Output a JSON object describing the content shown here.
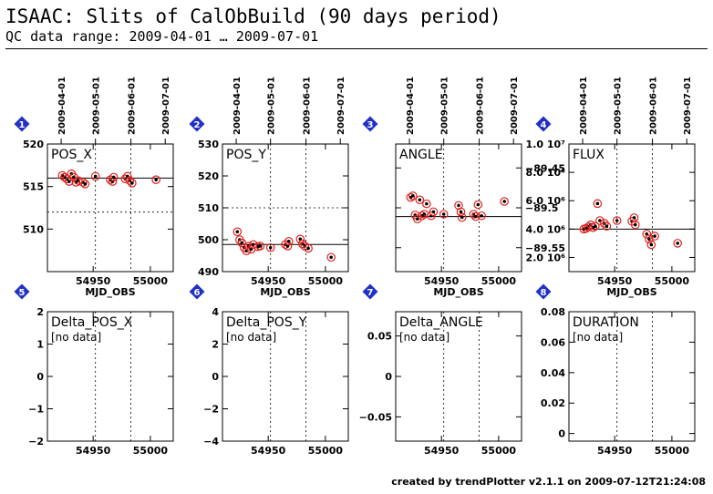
{
  "header": {
    "title": "ISAAC: Slits of CalObBuild (90 days period)",
    "subtitle": "QC data range: 2009-04-01 … 2009-07-01"
  },
  "footer": "created by trendPlotter v2.1.1 on 2009-07-12T21:24:08",
  "colors": {
    "data_ring": "#e0201b",
    "marker": "#2030c8",
    "axes": "#000000"
  },
  "date_axis": {
    "labels": [
      "2009-04-01",
      "2009-05-01",
      "2009-06-01",
      "2009-07-01"
    ],
    "mjd": [
      54922,
      54952,
      54983,
      55013
    ]
  },
  "chart_data": [
    {
      "type": "scatter",
      "marker": "1",
      "title": "POS_X",
      "xlabel": "MJD_OBS",
      "xlim": [
        54910,
        55020
      ],
      "ylim": [
        505,
        520
      ],
      "yticks": [
        {
          "v": 510,
          "t": "510"
        },
        {
          "v": 515,
          "t": "515"
        },
        {
          "v": 520,
          "t": "520"
        }
      ],
      "xticks": [
        {
          "v": 54950,
          "t": "54950"
        },
        {
          "v": 55000,
          "t": "55000"
        }
      ],
      "reference_line": 516,
      "dashed_lines": [
        512
      ],
      "points": [
        [
          54923,
          516.3
        ],
        [
          54925,
          516.1
        ],
        [
          54927,
          515.9
        ],
        [
          54929,
          515.6
        ],
        [
          54931,
          516.5
        ],
        [
          54933,
          516.1
        ],
        [
          54935,
          515.5
        ],
        [
          54937,
          515.7
        ],
        [
          54941,
          515.5
        ],
        [
          54943,
          515.3
        ],
        [
          54952,
          516.2
        ],
        [
          54965,
          515.8
        ],
        [
          54967,
          515.6
        ],
        [
          54968,
          516.1
        ],
        [
          54978,
          515.9
        ],
        [
          54980,
          516.2
        ],
        [
          54982,
          515.7
        ],
        [
          54984,
          515.4
        ],
        [
          55005,
          515.8
        ]
      ],
      "no_data": false
    },
    {
      "type": "scatter",
      "marker": "2",
      "title": "POS_Y",
      "xlabel": "MJD_OBS",
      "xlim": [
        54910,
        55020
      ],
      "ylim": [
        490,
        530
      ],
      "yticks": [
        {
          "v": 490,
          "t": "490"
        },
        {
          "v": 500,
          "t": "500"
        },
        {
          "v": 510,
          "t": "510"
        },
        {
          "v": 520,
          "t": "520"
        },
        {
          "v": 530,
          "t": "530"
        }
      ],
      "xticks": [
        {
          "v": 54950,
          "t": "54950"
        },
        {
          "v": 55000,
          "t": "55000"
        }
      ],
      "reference_line": 498.5,
      "dashed_lines": [
        510
      ],
      "points": [
        [
          54923,
          502.5
        ],
        [
          54925,
          500
        ],
        [
          54927,
          499
        ],
        [
          54929,
          497.5
        ],
        [
          54931,
          496.5
        ],
        [
          54933,
          498
        ],
        [
          54935,
          497
        ],
        [
          54937,
          498.5
        ],
        [
          54941,
          497.8
        ],
        [
          54943,
          498
        ],
        [
          54952,
          497.5
        ],
        [
          54965,
          498.5
        ],
        [
          54967,
          498
        ],
        [
          54968,
          499.5
        ],
        [
          54978,
          500.2
        ],
        [
          54980,
          498.7
        ],
        [
          54982,
          498
        ],
        [
          54985,
          497.3
        ],
        [
          55005,
          494.5
        ]
      ],
      "no_data": false
    },
    {
      "type": "scatter",
      "marker": "3",
      "title": "ANGLE",
      "xlabel": "MJD_OBS",
      "xlim": [
        54910,
        55020
      ],
      "ylim": [
        -89.58,
        -89.42
      ],
      "yticks": [
        {
          "v": -89.45,
          "t": "−89.45"
        },
        {
          "v": -89.5,
          "t": "−89.5"
        },
        {
          "v": -89.55,
          "t": "−89.55"
        }
      ],
      "xticks": [
        {
          "v": 54950,
          "t": "54950"
        },
        {
          "v": 55000,
          "t": "55000"
        }
      ],
      "reference_line": -89.511,
      "dashed_lines": [],
      "points": [
        [
          54923,
          -89.487
        ],
        [
          54925,
          -89.485
        ],
        [
          54927,
          -89.509
        ],
        [
          54929,
          -89.514
        ],
        [
          54931,
          -89.49
        ],
        [
          54933,
          -89.51
        ],
        [
          54935,
          -89.508
        ],
        [
          54937,
          -89.495
        ],
        [
          54941,
          -89.51
        ],
        [
          54943,
          -89.505
        ],
        [
          54952,
          -89.508
        ],
        [
          54965,
          -89.497
        ],
        [
          54967,
          -89.505
        ],
        [
          54968,
          -89.512
        ],
        [
          54978,
          -89.508
        ],
        [
          54980,
          -89.511
        ],
        [
          54982,
          -89.496
        ],
        [
          54985,
          -89.51
        ],
        [
          55005,
          -89.492
        ]
      ],
      "no_data": false
    },
    {
      "type": "scatter",
      "marker": "4",
      "title": "FLUX",
      "xlabel": "MJD_OBS",
      "xlim": [
        54910,
        55020
      ],
      "ylim": [
        1000000,
        10000000
      ],
      "yticks": [
        {
          "v": 2000000,
          "t": "2.0 10⁶"
        },
        {
          "v": 4000000,
          "t": "4.0 10⁶"
        },
        {
          "v": 6000000,
          "t": "6.0 10⁶"
        },
        {
          "v": 8000000,
          "t": "8.0 10⁶"
        },
        {
          "v": 10000000,
          "t": "1.0 10⁷"
        }
      ],
      "xticks": [
        {
          "v": 54950,
          "t": "54950"
        },
        {
          "v": 55000,
          "t": "55000"
        }
      ],
      "reference_line": 4000000,
      "dashed_lines": [],
      "points": [
        [
          54923,
          4000000
        ],
        [
          54925,
          4050000
        ],
        [
          54927,
          4150000
        ],
        [
          54929,
          4300000
        ],
        [
          54931,
          4100000
        ],
        [
          54933,
          4200000
        ],
        [
          54935,
          5800000
        ],
        [
          54937,
          4600000
        ],
        [
          54941,
          4400000
        ],
        [
          54943,
          4200000
        ],
        [
          54952,
          4600000
        ],
        [
          54965,
          4550000
        ],
        [
          54967,
          4800000
        ],
        [
          54968,
          4300000
        ],
        [
          54978,
          3650000
        ],
        [
          54980,
          3300000
        ],
        [
          54982,
          2900000
        ],
        [
          54985,
          3500000
        ],
        [
          55005,
          3000000
        ]
      ],
      "no_data": false
    },
    {
      "type": "scatter",
      "marker": "5",
      "title": "Delta_POS_X",
      "xlabel": "",
      "xlim": [
        54910,
        55020
      ],
      "ylim": [
        -2,
        2
      ],
      "yticks": [
        {
          "v": -2,
          "t": "−2"
        },
        {
          "v": -1,
          "t": "−1"
        },
        {
          "v": 0,
          "t": "0"
        },
        {
          "v": 1,
          "t": "1"
        },
        {
          "v": 2,
          "t": "2"
        }
      ],
      "xticks": [
        {
          "v": 54950,
          "t": "54950"
        },
        {
          "v": 55000,
          "t": "55000"
        }
      ],
      "reference_line": null,
      "dashed_lines": [],
      "points": [],
      "no_data": true,
      "no_data_label": "[no data]"
    },
    {
      "type": "scatter",
      "marker": "6",
      "title": "Delta_POS_Y",
      "xlabel": "",
      "xlim": [
        54910,
        55020
      ],
      "ylim": [
        -4,
        4
      ],
      "yticks": [
        {
          "v": -4,
          "t": "−4"
        },
        {
          "v": -2,
          "t": "−2"
        },
        {
          "v": 0,
          "t": "0"
        },
        {
          "v": 2,
          "t": "2"
        },
        {
          "v": 4,
          "t": "4"
        }
      ],
      "xticks": [
        {
          "v": 54950,
          "t": "54950"
        },
        {
          "v": 55000,
          "t": "55000"
        }
      ],
      "reference_line": null,
      "dashed_lines": [],
      "points": [],
      "no_data": true,
      "no_data_label": "[no data]"
    },
    {
      "type": "scatter",
      "marker": "7",
      "title": "Delta_ANGLE",
      "xlabel": "",
      "xlim": [
        54910,
        55020
      ],
      "ylim": [
        -0.08,
        0.08
      ],
      "yticks": [
        {
          "v": -0.05,
          "t": "−0.05"
        },
        {
          "v": 0,
          "t": "0"
        },
        {
          "v": 0.05,
          "t": "0.05"
        }
      ],
      "xticks": [
        {
          "v": 54950,
          "t": "54950"
        },
        {
          "v": 55000,
          "t": "55000"
        }
      ],
      "reference_line": null,
      "dashed_lines": [],
      "points": [],
      "no_data": true,
      "no_data_label": "[no data]"
    },
    {
      "type": "scatter",
      "marker": "8",
      "title": "DURATION",
      "xlabel": "",
      "xlim": [
        54910,
        55020
      ],
      "ylim": [
        -0.005,
        0.08
      ],
      "yticks": [
        {
          "v": 0,
          "t": "0"
        },
        {
          "v": 0.02,
          "t": "0.02"
        },
        {
          "v": 0.04,
          "t": "0.04"
        },
        {
          "v": 0.06,
          "t": "0.06"
        },
        {
          "v": 0.08,
          "t": "0.08"
        }
      ],
      "xticks": [
        {
          "v": 54950,
          "t": "54950"
        },
        {
          "v": 55000,
          "t": "55000"
        }
      ],
      "reference_line": null,
      "dashed_lines": [],
      "points": [],
      "no_data": true,
      "no_data_label": "[no data]"
    }
  ]
}
